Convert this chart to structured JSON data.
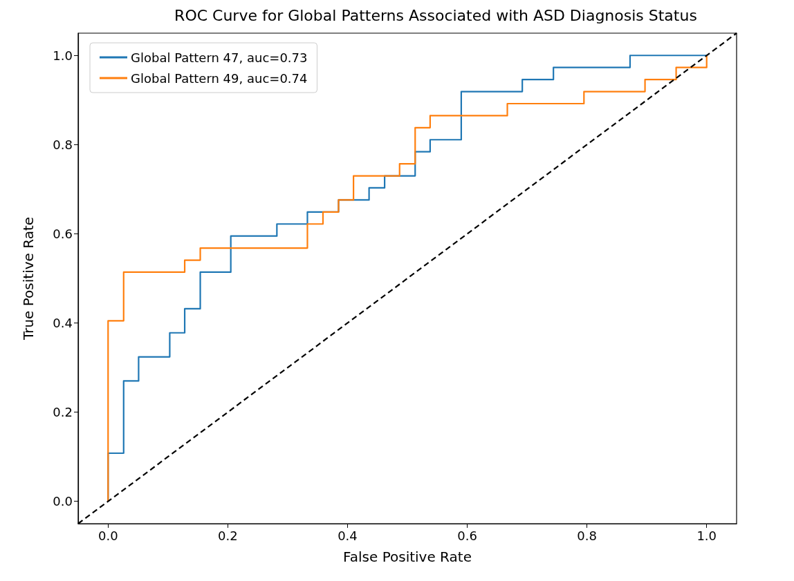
{
  "chart_data": {
    "type": "line",
    "title": "ROC Curve for Global Patterns Associated with ASD Diagnosis Status",
    "xlabel": "False Positive Rate",
    "ylabel": "True Positive Rate",
    "xlim": [
      -0.05,
      1.05
    ],
    "ylim": [
      -0.05,
      1.05
    ],
    "xticks": [
      {
        "value": 0,
        "label": "0.0"
      },
      0.2,
      0.4,
      0.6,
      0.8,
      {
        "value": 1,
        "label": "1.0"
      }
    ],
    "yticks": [
      {
        "value": 0,
        "label": "0.0"
      },
      0.2,
      0.4,
      0.6,
      0.8,
      {
        "value": 1,
        "label": "1.0"
      }
    ],
    "legend": "top left",
    "marker": "none",
    "series": [
      {
        "name": "Global Pattern 47, auc=0.73",
        "color": "#1f77b4",
        "line_style": "solid",
        "x": [
          0,
          0,
          0.026,
          0.026,
          0.051,
          0.051,
          0.103,
          0.103,
          0.128,
          0.128,
          0.154,
          0.154,
          0.205,
          0.205,
          0.282,
          0.282,
          0.333,
          0.333,
          0.385,
          0.385,
          0.436,
          0.436,
          0.462,
          0.462,
          0.513,
          0.513,
          0.538,
          0.538,
          0.59,
          0.59,
          0.692,
          0.692,
          0.744,
          0.744,
          0.872,
          0.872,
          1.0
        ],
        "values": [
          0,
          0.108,
          0.108,
          0.27,
          0.27,
          0.324,
          0.324,
          0.378,
          0.378,
          0.432,
          0.432,
          0.514,
          0.514,
          0.595,
          0.595,
          0.622,
          0.622,
          0.649,
          0.649,
          0.676,
          0.676,
          0.703,
          0.703,
          0.73,
          0.73,
          0.784,
          0.784,
          0.811,
          0.811,
          0.919,
          0.919,
          0.946,
          0.946,
          0.973,
          0.973,
          1.0,
          1.0
        ]
      },
      {
        "name": "Global Pattern 49, auc=0.74",
        "color": "#ff7f0e",
        "line_style": "solid",
        "x": [
          0,
          0,
          0.026,
          0.026,
          0.128,
          0.128,
          0.154,
          0.154,
          0.333,
          0.333,
          0.359,
          0.359,
          0.385,
          0.385,
          0.41,
          0.41,
          0.487,
          0.487,
          0.513,
          0.513,
          0.538,
          0.538,
          0.667,
          0.667,
          0.795,
          0.795,
          0.897,
          0.897,
          0.949,
          0.949,
          1.0,
          1.0
        ],
        "values": [
          0,
          0.405,
          0.405,
          0.514,
          0.514,
          0.541,
          0.541,
          0.568,
          0.568,
          0.622,
          0.622,
          0.649,
          0.649,
          0.676,
          0.676,
          0.73,
          0.73,
          0.757,
          0.757,
          0.838,
          0.838,
          0.865,
          0.865,
          0.892,
          0.892,
          0.919,
          0.919,
          0.946,
          0.946,
          0.973,
          0.973,
          1.0
        ]
      },
      {
        "color": "#000000",
        "line_style": "dashed",
        "x": [
          -0.05,
          1.05
        ],
        "values": [
          -0.05,
          1.05
        ]
      }
    ]
  }
}
